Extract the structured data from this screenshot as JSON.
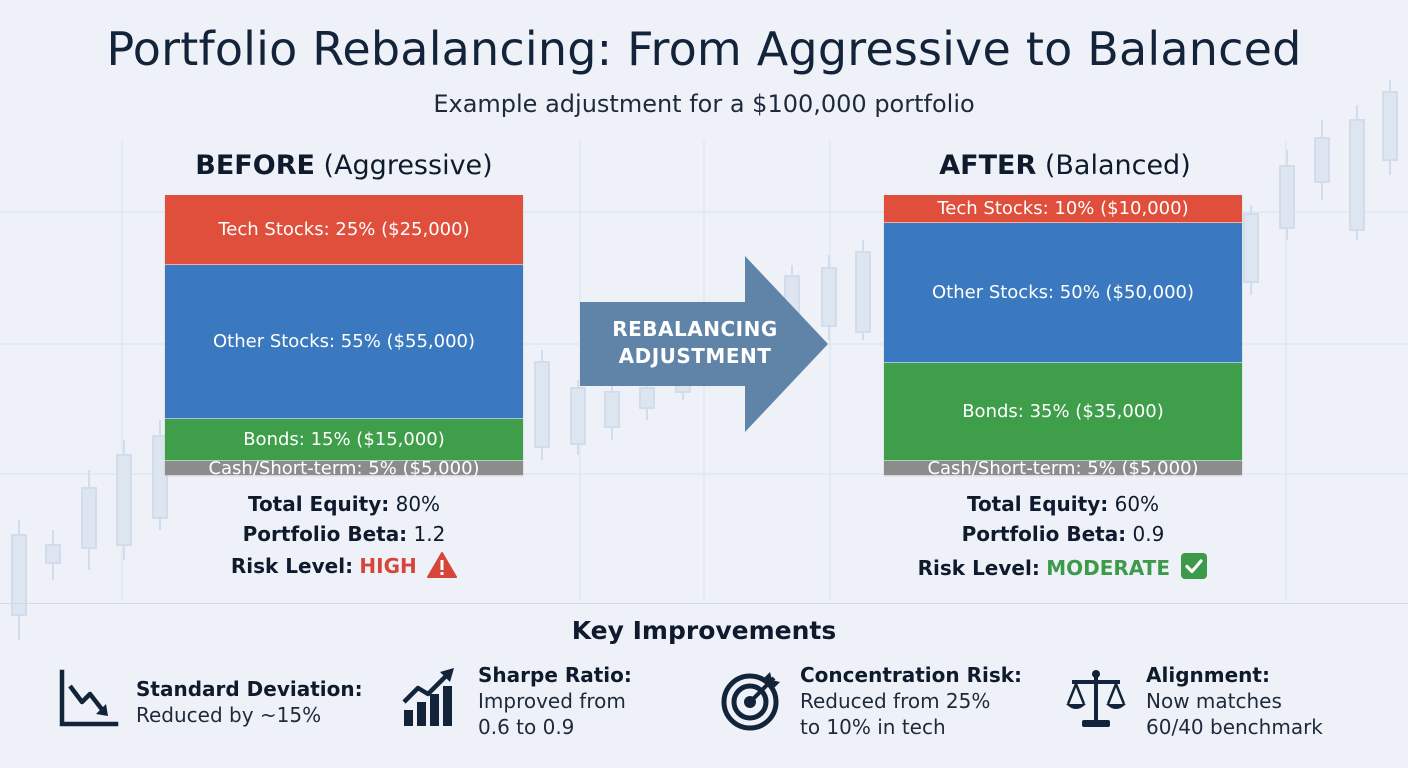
{
  "title": "Portfolio Rebalancing: From Aggressive to Balanced",
  "subtitle": "Example adjustment for a $100,000 portfolio",
  "before": {
    "heading_bold": "BEFORE",
    "heading_rest": "(Aggressive)",
    "segments": [
      {
        "label": "Tech Stocks: 25% ($25,000)",
        "percent": 25,
        "color": "#df4f3b"
      },
      {
        "label": "Other Stocks: 55% ($55,000)",
        "percent": 55,
        "color": "#3a79bf"
      },
      {
        "label": "Bonds: 15% ($15,000)",
        "percent": 15,
        "color": "#3f9e4a"
      },
      {
        "label": "Cash/Short-term: 5% ($5,000)",
        "percent": 5,
        "color": "#8c8c8c"
      }
    ],
    "total_equity_label": "Total Equity:",
    "total_equity_value": "80%",
    "beta_label": "Portfolio Beta:",
    "beta_value": "1.2",
    "risk_label": "Risk Level:",
    "risk_value": "HIGH",
    "risk_icon": "warning-icon"
  },
  "arrow": {
    "line1": "REBALANCING",
    "line2": "ADJUSTMENT"
  },
  "after": {
    "heading_bold": "AFTER",
    "heading_rest": "(Balanced)",
    "segments": [
      {
        "label": "Tech Stocks: 10% ($10,000)",
        "percent": 10,
        "color": "#df4f3b"
      },
      {
        "label": "Other Stocks: 50% ($50,000)",
        "percent": 50,
        "color": "#3a79bf"
      },
      {
        "label": "Bonds: 35% ($35,000)",
        "percent": 35,
        "color": "#3f9e4a"
      },
      {
        "label": "Cash/Short-term: 5% ($5,000)",
        "percent": 5,
        "color": "#8c8c8c"
      }
    ],
    "total_equity_label": "Total Equity:",
    "total_equity_value": "60%",
    "beta_label": "Portfolio Beta:",
    "beta_value": "0.9",
    "risk_label": "Risk Level:",
    "risk_value": "MODERATE",
    "risk_icon": "check-icon"
  },
  "key_improvements": {
    "title": "Key Improvements",
    "items": [
      {
        "title": "Standard Deviation:",
        "line1": "Reduced by ~15%",
        "line2": "",
        "icon": "trend-down-chart-icon"
      },
      {
        "title": "Sharpe Ratio:",
        "line1": "Improved from",
        "line2": "0.6 to 0.9",
        "icon": "growth-bar-chart-icon"
      },
      {
        "title": "Concentration Risk:",
        "line1": "Reduced from 25%",
        "line2": "to 10% in tech",
        "icon": "target-arrow-icon"
      },
      {
        "title": "Alignment:",
        "line1": "Now matches",
        "line2": "60/40 benchmark",
        "icon": "balance-scale-icon"
      }
    ]
  }
}
